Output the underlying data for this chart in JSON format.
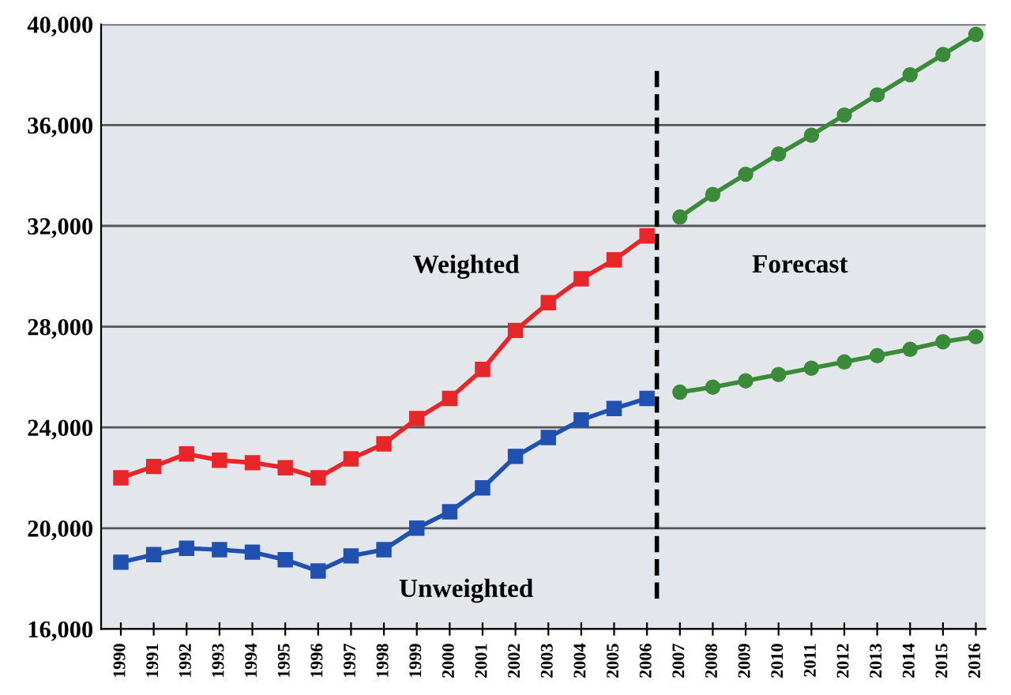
{
  "chart_data": {
    "type": "line",
    "x": [
      1990,
      1991,
      1992,
      1993,
      1994,
      1995,
      1996,
      1997,
      1998,
      1999,
      2000,
      2001,
      2002,
      2003,
      2004,
      2005,
      2006,
      2007,
      2008,
      2009,
      2010,
      2011,
      2012,
      2013,
      2014,
      2015,
      2016
    ],
    "series": [
      {
        "name": "Weighted",
        "color": "#e8262a",
        "marker": "square",
        "values": [
          22000,
          22450,
          22950,
          22700,
          22600,
          22400,
          22000,
          22750,
          23350,
          24350,
          25150,
          26300,
          27850,
          28950,
          29900,
          30650,
          31600,
          null,
          null,
          null,
          null,
          null,
          null,
          null,
          null,
          null,
          null
        ]
      },
      {
        "name": "Unweighted",
        "color": "#2050b0",
        "marker": "square",
        "values": [
          18650,
          18950,
          19200,
          19150,
          19050,
          18750,
          18300,
          18900,
          19150,
          20000,
          20650,
          21600,
          22850,
          23600,
          24300,
          24750,
          25150,
          null,
          null,
          null,
          null,
          null,
          null,
          null,
          null,
          null,
          null
        ]
      },
      {
        "color": "#3a8a3a",
        "marker": "circle",
        "values": [
          null,
          null,
          null,
          null,
          null,
          null,
          null,
          null,
          null,
          null,
          null,
          null,
          null,
          null,
          null,
          null,
          null,
          32350,
          33250,
          34050,
          34850,
          35600,
          36400,
          37200,
          38000,
          38800,
          39600
        ]
      },
      {
        "color": "#3a8a3a",
        "marker": "circle",
        "values": [
          null,
          null,
          null,
          null,
          null,
          null,
          null,
          null,
          null,
          null,
          null,
          null,
          null,
          null,
          null,
          null,
          null,
          25400,
          25600,
          25850,
          26100,
          26350,
          26600,
          26850,
          27100,
          27400,
          27600
        ]
      }
    ],
    "xlim": [
      1989.4,
      2016.3
    ],
    "xticks": [
      {
        "value": 1990,
        "label": "1990"
      },
      {
        "value": 1991,
        "label": "1991"
      },
      {
        "value": 1992,
        "label": "1992"
      },
      {
        "value": 1993,
        "label": "1993"
      },
      {
        "value": 1994,
        "label": "1994"
      },
      {
        "value": 1995,
        "label": "1995"
      },
      {
        "value": 1996,
        "label": "1996"
      },
      {
        "value": 1997,
        "label": "1997"
      },
      {
        "value": 1998,
        "label": "1998"
      },
      {
        "value": 1999,
        "label": "1999"
      },
      {
        "value": 2000,
        "label": "2000"
      },
      {
        "value": 2001,
        "label": "2001"
      },
      {
        "value": 2002,
        "label": "2002"
      },
      {
        "value": 2003,
        "label": "2003"
      },
      {
        "value": 2004,
        "label": "2004"
      },
      {
        "value": 2005,
        "label": "2005"
      },
      {
        "value": 2006,
        "label": "2006"
      },
      {
        "value": 2007,
        "label": "2007"
      },
      {
        "value": 2008,
        "label": "2008"
      },
      {
        "value": 2009,
        "label": "2009"
      },
      {
        "value": 2010,
        "label": "2010"
      },
      {
        "value": 2011,
        "label": "2011"
      },
      {
        "value": 2012,
        "label": "2012"
      },
      {
        "value": 2013,
        "label": "2013"
      },
      {
        "value": 2014,
        "label": "2014"
      },
      {
        "value": 2015,
        "label": "2015"
      },
      {
        "value": 2016,
        "label": "2016"
      }
    ],
    "ylim": [
      16000,
      40000
    ],
    "yticks": [
      {
        "value": 16000,
        "label": "16,000"
      },
      {
        "value": 20000,
        "label": "20,000"
      },
      {
        "value": 24000,
        "label": "24,000"
      },
      {
        "value": 28000,
        "label": "28,000"
      },
      {
        "value": 32000,
        "label": "32,000"
      },
      {
        "value": 36000,
        "label": "36,000"
      },
      {
        "value": 40000,
        "label": "40,000"
      }
    ],
    "grid": "y",
    "line_style": "solid",
    "ref_lines": [
      {
        "axis": "x",
        "value": 2006.3,
        "color": "#000000",
        "line_style": "dashed"
      }
    ],
    "annotations": [
      "Forecast"
    ]
  }
}
